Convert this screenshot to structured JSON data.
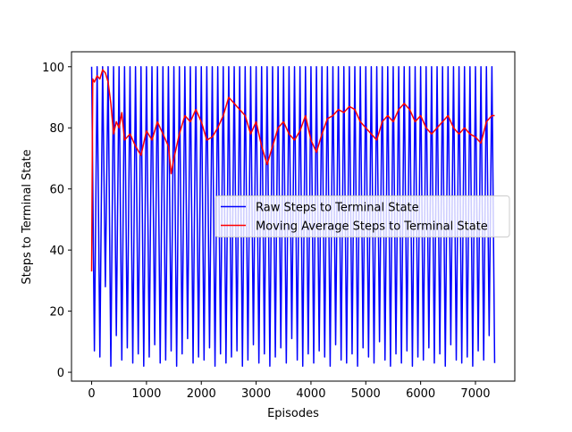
{
  "chart_data": {
    "type": "line",
    "xlabel": "Episodes",
    "ylabel": "Steps to Terminal State",
    "xlim": [
      -367.5,
      7717.5
    ],
    "ylim": [
      -2.9,
      104.9
    ],
    "xticks": [
      0,
      1000,
      2000,
      3000,
      4000,
      5000,
      6000,
      7000
    ],
    "yticks": [
      0,
      20,
      40,
      60,
      80,
      100
    ],
    "legend": "center right",
    "series": [
      {
        "name": "Raw Steps to Terminal State",
        "color": "#0000ff",
        "x": [
          0,
          50,
          100,
          150,
          200,
          250,
          300,
          350,
          400,
          450,
          500,
          550,
          600,
          650,
          700,
          750,
          800,
          850,
          900,
          950,
          1000,
          1050,
          1100,
          1150,
          1200,
          1250,
          1300,
          1350,
          1400,
          1450,
          1500,
          1550,
          1600,
          1650,
          1700,
          1750,
          1800,
          1850,
          1900,
          1950,
          2000,
          2050,
          2100,
          2150,
          2200,
          2250,
          2300,
          2350,
          2400,
          2450,
          2500,
          2550,
          2600,
          2650,
          2700,
          2750,
          2800,
          2850,
          2900,
          2950,
          3000,
          3050,
          3100,
          3150,
          3200,
          3250,
          3300,
          3350,
          3400,
          3450,
          3500,
          3550,
          3600,
          3650,
          3700,
          3750,
          3800,
          3850,
          3900,
          3950,
          4000,
          4050,
          4100,
          4150,
          4200,
          4250,
          4300,
          4350,
          4400,
          4450,
          4500,
          4550,
          4600,
          4650,
          4700,
          4750,
          4800,
          4850,
          4900,
          4950,
          5000,
          5050,
          5100,
          5150,
          5200,
          5250,
          5300,
          5350,
          5400,
          5450,
          5500,
          5550,
          5600,
          5650,
          5700,
          5750,
          5800,
          5850,
          5900,
          5950,
          6000,
          6050,
          6100,
          6150,
          6200,
          6250,
          6300,
          6350,
          6400,
          6450,
          6500,
          6550,
          6600,
          6650,
          6700,
          6750,
          6800,
          6850,
          6900,
          6950,
          7000,
          7050,
          7100,
          7150,
          7200,
          7250,
          7300,
          7350
        ],
        "values": [
          100,
          7,
          100,
          5,
          100,
          28,
          100,
          2,
          100,
          12,
          100,
          4,
          100,
          8,
          100,
          3,
          100,
          6,
          100,
          2,
          100,
          5,
          100,
          9,
          100,
          3,
          100,
          4,
          100,
          7,
          100,
          2,
          100,
          6,
          100,
          11,
          100,
          3,
          100,
          5,
          100,
          4,
          100,
          8,
          100,
          2,
          100,
          6,
          100,
          3,
          100,
          5,
          100,
          7,
          100,
          2,
          100,
          4,
          100,
          9,
          100,
          3,
          100,
          6,
          100,
          2,
          100,
          5,
          100,
          8,
          100,
          3,
          100,
          11,
          100,
          4,
          100,
          2,
          100,
          6,
          100,
          3,
          100,
          7,
          100,
          5,
          100,
          2,
          100,
          9,
          100,
          4,
          100,
          3,
          100,
          6,
          100,
          2,
          100,
          8,
          100,
          5,
          100,
          3,
          100,
          10,
          100,
          4,
          100,
          2,
          100,
          6,
          100,
          3,
          100,
          7,
          100,
          2,
          100,
          5,
          100,
          4,
          100,
          8,
          100,
          3,
          100,
          6,
          100,
          2,
          100,
          9,
          100,
          4,
          100,
          3,
          100,
          5,
          100,
          2,
          100,
          7,
          100,
          4,
          100,
          12,
          100,
          3
        ]
      },
      {
        "name": "Moving Average Steps to Terminal State",
        "color": "#ff0000",
        "x": [
          0,
          20,
          50,
          100,
          150,
          200,
          250,
          300,
          350,
          400,
          450,
          500,
          550,
          600,
          700,
          800,
          900,
          1000,
          1100,
          1200,
          1300,
          1400,
          1450,
          1500,
          1600,
          1700,
          1800,
          1900,
          2000,
          2100,
          2200,
          2300,
          2400,
          2500,
          2600,
          2700,
          2800,
          2900,
          3000,
          3100,
          3200,
          3300,
          3400,
          3500,
          3600,
          3700,
          3800,
          3900,
          4000,
          4100,
          4200,
          4300,
          4400,
          4500,
          4600,
          4700,
          4800,
          4900,
          5000,
          5100,
          5200,
          5300,
          5400,
          5500,
          5600,
          5700,
          5800,
          5900,
          6000,
          6100,
          6200,
          6300,
          6400,
          6500,
          6600,
          6700,
          6800,
          6900,
          7000,
          7100,
          7200,
          7300,
          7350
        ],
        "values": [
          33,
          96,
          95,
          97,
          96,
          99,
          98,
          95,
          88,
          78,
          82,
          80,
          85,
          76,
          78,
          74,
          71,
          79,
          76,
          82,
          78,
          74,
          65,
          70,
          78,
          84,
          82,
          86,
          82,
          76,
          77,
          80,
          84,
          90,
          88,
          86,
          84,
          78,
          82,
          74,
          68,
          74,
          80,
          82,
          78,
          76,
          79,
          84,
          76,
          72,
          78,
          83,
          84,
          86,
          85,
          87,
          86,
          82,
          80,
          78,
          76,
          82,
          84,
          82,
          86,
          88,
          86,
          82,
          84,
          80,
          78,
          80,
          82,
          84,
          80,
          78,
          80,
          78,
          77,
          75,
          82,
          84,
          84
        ]
      }
    ]
  }
}
